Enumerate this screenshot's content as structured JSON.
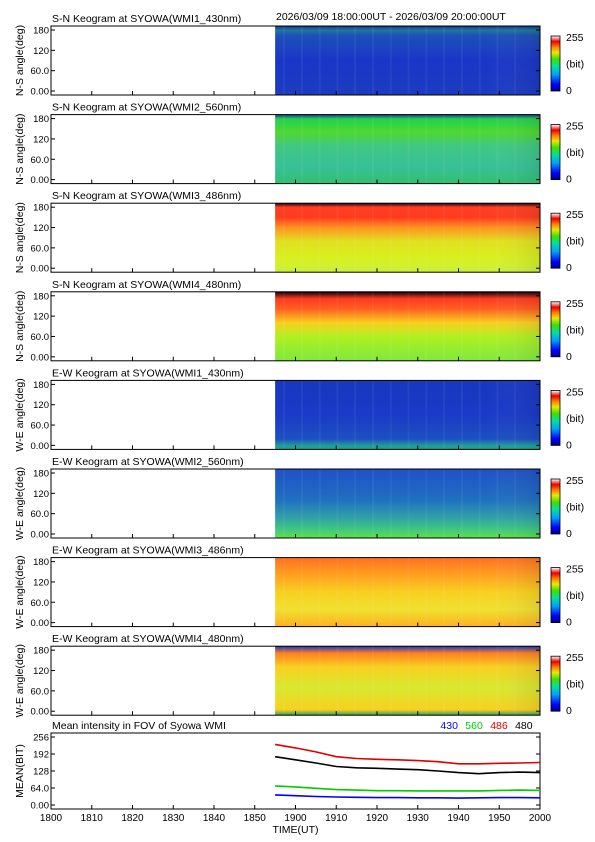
{
  "header": {
    "time_range": "2026/03/09 18:00:00UT - 2026/03/09 20:00:00UT"
  },
  "colorbar": {
    "max_label": "255",
    "unit_label": "(bit)",
    "min_label": "0"
  },
  "keograms": [
    {
      "title": "S-N Keogram at SYOWA(WMI1_430nm)",
      "ylabel": "N-S angle(deg)",
      "profile": "w1"
    },
    {
      "title": "S-N Keogram at SYOWA(WMI2_560nm)",
      "ylabel": "N-S angle(deg)",
      "profile": "w2"
    },
    {
      "title": "S-N Keogram at SYOWA(WMI3_486nm)",
      "ylabel": "N-S angle(deg)",
      "profile": "w3"
    },
    {
      "title": "S-N Keogram at SYOWA(WMI4_480nm)",
      "ylabel": "N-S angle(deg)",
      "profile": "w4"
    },
    {
      "title": "E-W Keogram at SYOWA(WMI1_430nm)",
      "ylabel": "W-E angle(deg)",
      "profile": "e1"
    },
    {
      "title": "E-W Keogram at SYOWA(WMI2_560nm)",
      "ylabel": "W-E angle(deg)",
      "profile": "e2"
    },
    {
      "title": "E-W Keogram at SYOWA(WMI3_486nm)",
      "ylabel": "W-E angle(deg)",
      "profile": "e3"
    },
    {
      "title": "E-W Keogram at SYOWA(WMI4_480nm)",
      "ylabel": "W-E angle(deg)",
      "profile": "e4"
    }
  ],
  "keogram_yticks": [
    "180",
    "120",
    "60.0",
    "0.00"
  ],
  "keogram_ytick_values": [
    180,
    120,
    60,
    0
  ],
  "data_start_time": 1855,
  "chart_data": {
    "type": "line",
    "title": "Mean intensity in FOV of Syowa WMI",
    "xlabel": "TIME(UT)",
    "ylabel": "MEAN(BIT)",
    "xlim": [
      1800,
      2000
    ],
    "ylim": [
      0,
      256
    ],
    "x_ticks": [
      1800,
      1810,
      1820,
      1830,
      1840,
      1850,
      1900,
      1910,
      1920,
      1930,
      1940,
      1950,
      2000
    ],
    "x_tick_labels": [
      "1800",
      "1810",
      "1820",
      "1830",
      "1840",
      "1850",
      "1900",
      "1910",
      "1920",
      "1930",
      "1940",
      "1950",
      "2000"
    ],
    "y_ticks": [
      256,
      192,
      128,
      64,
      0
    ],
    "y_tick_labels": [
      "256",
      "192",
      "128",
      "64.0",
      "0.00"
    ],
    "x": [
      1855,
      1900,
      1905,
      1910,
      1915,
      1920,
      1925,
      1930,
      1935,
      1940,
      1945,
      1950,
      1955,
      2000
    ],
    "series": [
      {
        "name": "430",
        "color": "#0000ff",
        "values": [
          38,
          35,
          32,
          30,
          29,
          28,
          28,
          27,
          27,
          26,
          27,
          28,
          28,
          27
        ]
      },
      {
        "name": "560",
        "color": "#00cc00",
        "values": [
          72,
          68,
          63,
          58,
          56,
          54,
          54,
          53,
          53,
          53,
          53,
          55,
          56,
          55
        ]
      },
      {
        "name": "486",
        "color": "#dd0000",
        "values": [
          228,
          215,
          200,
          182,
          175,
          172,
          170,
          167,
          163,
          155,
          155,
          157,
          158,
          160
        ]
      },
      {
        "name": "480",
        "color": "#000000",
        "values": [
          182,
          170,
          158,
          145,
          140,
          138,
          135,
          133,
          128,
          122,
          118,
          122,
          124,
          122
        ]
      }
    ],
    "legend": "top-right",
    "grid": false
  }
}
